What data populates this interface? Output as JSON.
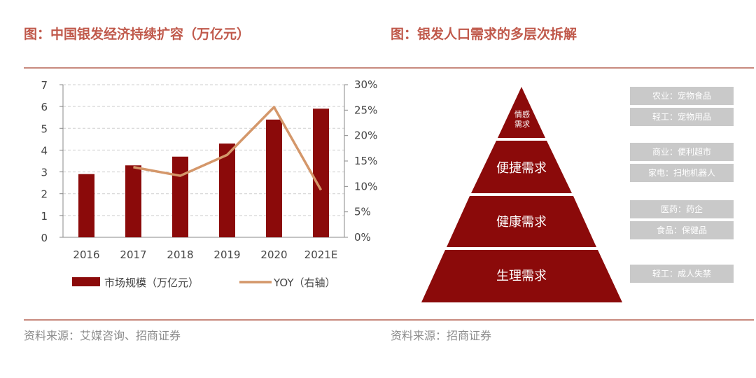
{
  "left": {
    "title": "图：中国银发经济持续扩容（万亿元）",
    "source": "资料来源：艾媒咨询、招商证券"
  },
  "right": {
    "title": "图：银发人口需求的多层次拆解",
    "source": "资料来源：招商证券",
    "pyramid": [
      {
        "label": "情感需求",
        "tags": []
      },
      {
        "label": "便捷需求",
        "tags": [
          "商业：便利超市",
          "家电：扫地机器人"
        ]
      },
      {
        "label": "健康需求",
        "tags": [
          "医药：药企",
          "食品：保健品"
        ]
      },
      {
        "label": "生理需求",
        "tags": [
          "轻工：成人失禁"
        ]
      }
    ],
    "top_tags": [
      "农业：宠物食品",
      "轻工：宠物用品"
    ]
  },
  "chart_data": {
    "type": "bar",
    "categories": [
      "2016",
      "2017",
      "2018",
      "2019",
      "2020",
      "2021E"
    ],
    "series": [
      {
        "name": "市场规模（万亿元）",
        "type": "bar",
        "axis": "left",
        "values": [
          2.9,
          3.3,
          3.7,
          4.3,
          5.4,
          5.9
        ],
        "color": "#8b0a0a"
      },
      {
        "name": "YOY（右轴）",
        "type": "line",
        "axis": "right",
        "values": [
          null,
          13.8,
          12.1,
          16.2,
          25.6,
          9.3
        ],
        "color": "#d4976a"
      }
    ],
    "ylim": [
      0,
      7
    ],
    "yticks": [
      "0",
      "1",
      "2",
      "3",
      "4",
      "5",
      "6",
      "7"
    ],
    "y2lim": [
      0,
      30
    ],
    "y2ticks": [
      "0%",
      "5%",
      "10%",
      "15%",
      "20%",
      "25%",
      "30%"
    ],
    "grid": true,
    "legend": "bottom"
  }
}
